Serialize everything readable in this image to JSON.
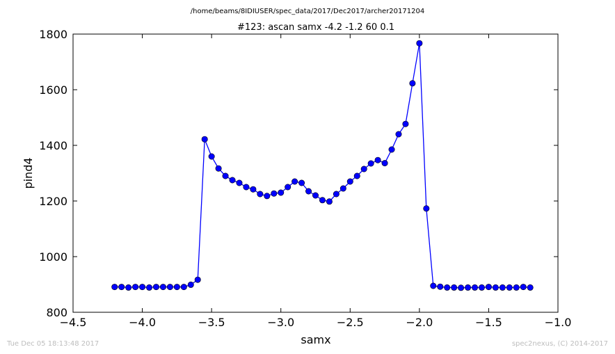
{
  "figure": {
    "suptitle": "/home/beams/8IDIUSER/spec_data/2017/Dec2017/archer20171204",
    "timestamp": "Tue Dec 05 18:13:48 2017",
    "credit": "spec2nexus, (C) 2014-2017"
  },
  "chart_data": {
    "type": "line",
    "title": "#123: ascan  samx -4.2 -1.2  60 0.1",
    "xlabel": "samx",
    "ylabel": "pind4",
    "xlim": [
      -4.5,
      -1.0
    ],
    "ylim": [
      800,
      1800
    ],
    "xticks": [
      -4.5,
      -4.0,
      -3.5,
      -3.0,
      -2.5,
      -2.0,
      -1.5,
      -1.0
    ],
    "xtick_labels": [
      "−4.5",
      "−4.0",
      "−3.5",
      "−3.0",
      "−2.5",
      "−2.0",
      "−1.5",
      "−1.0"
    ],
    "yticks": [
      800,
      1000,
      1200,
      1400,
      1600,
      1800
    ],
    "ytick_labels": [
      "800",
      "1000",
      "1200",
      "1400",
      "1600",
      "1800"
    ],
    "grid": false,
    "marker": "circle",
    "color": "#0000ff",
    "series": [
      {
        "x": [
          -4.2,
          -4.15,
          -4.1,
          -4.05,
          -4.0,
          -3.95,
          -3.9,
          -3.85,
          -3.8,
          -3.75,
          -3.7,
          -3.65,
          -3.6,
          -3.55,
          -3.5,
          -3.45,
          -3.4,
          -3.35,
          -3.3,
          -3.25,
          -3.2,
          -3.15,
          -3.1,
          -3.05,
          -3.0,
          -2.95,
          -2.9,
          -2.85,
          -2.8,
          -2.75,
          -2.7,
          -2.65,
          -2.6,
          -2.55,
          -2.5,
          -2.45,
          -2.4,
          -2.35,
          -2.3,
          -2.25,
          -2.2,
          -2.15,
          -2.1,
          -2.05,
          -2.0,
          -1.95,
          -1.9,
          -1.85,
          -1.8,
          -1.75,
          -1.7,
          -1.65,
          -1.6,
          -1.55,
          -1.5,
          -1.45,
          -1.4,
          -1.35,
          -1.3,
          -1.25,
          -1.2
        ],
        "y": [
          891,
          891,
          889,
          891,
          891,
          889,
          891,
          891,
          891,
          891,
          891,
          899,
          917,
          1422,
          1360,
          1317,
          1290,
          1275,
          1265,
          1250,
          1242,
          1225,
          1218,
          1227,
          1230,
          1250,
          1270,
          1265,
          1235,
          1220,
          1203,
          1198,
          1225,
          1245,
          1270,
          1290,
          1315,
          1335,
          1347,
          1336,
          1385,
          1440,
          1477,
          1623,
          1767,
          1173,
          895,
          892,
          889,
          889,
          888,
          889,
          889,
          889,
          891,
          889,
          889,
          889,
          889,
          891,
          889
        ]
      }
    ]
  }
}
